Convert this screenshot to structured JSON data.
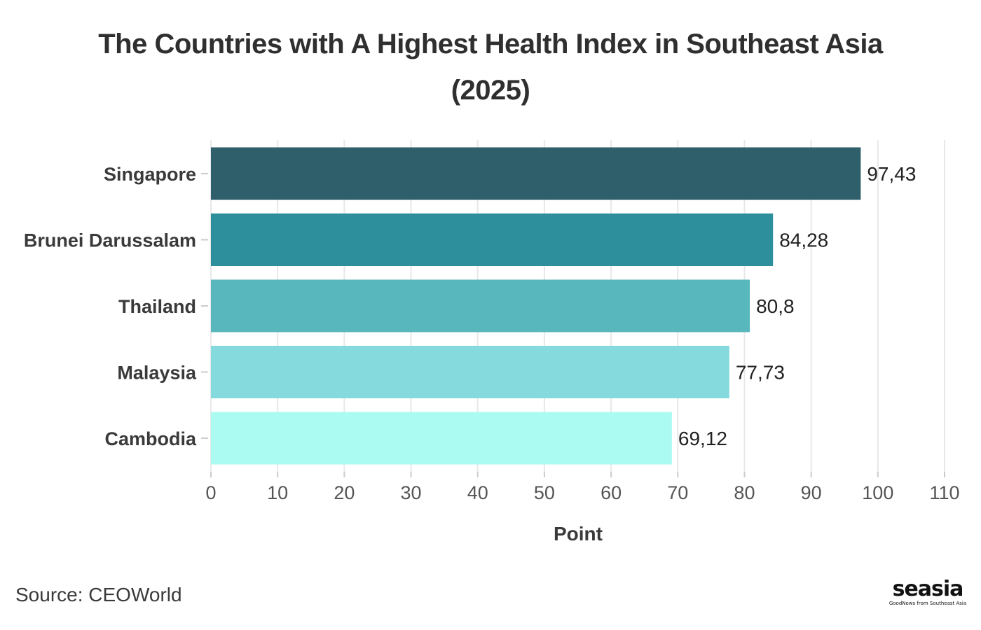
{
  "chart_data": {
    "type": "bar",
    "orientation": "horizontal",
    "title_line1": "The Countries with A Highest Health Index in Southeast Asia",
    "title_line2": "(2025)",
    "xlabel": "Point",
    "ylabel": "",
    "xlim": [
      0,
      110
    ],
    "xticks": [
      0,
      10,
      20,
      30,
      40,
      50,
      60,
      70,
      80,
      90,
      100,
      110
    ],
    "grid": true,
    "categories": [
      "Singapore",
      "Brunei Darussalam",
      "Thailand",
      "Malaysia",
      "Cambodia"
    ],
    "values": [
      97.43,
      84.28,
      80.8,
      77.73,
      69.12
    ],
    "value_labels": [
      "97,43",
      "84,28",
      "80,8",
      "77,73",
      "69,12"
    ],
    "colors": [
      "#2f5f6b",
      "#2e8f9c",
      "#58b6bd",
      "#84dadc",
      "#abfbf3"
    ]
  },
  "footer": {
    "source": "Source: CEOWorld"
  },
  "logo": {
    "name": "seasia",
    "tagline": "GoodNews from Southeast Asia"
  }
}
